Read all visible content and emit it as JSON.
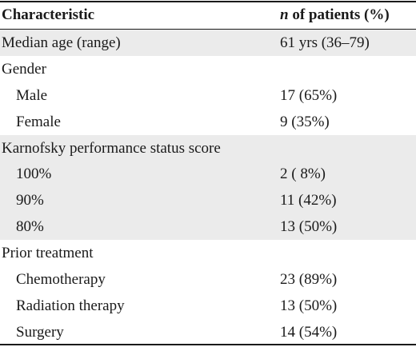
{
  "header": {
    "col1": "Characteristic",
    "col2_italic": "n",
    "col2_rest": " of patients (%)"
  },
  "rows": [
    {
      "label": "Median age (range)",
      "value": "61 yrs (36–79)",
      "indent": false,
      "shaded": true
    },
    {
      "label": "Gender",
      "value": "",
      "indent": false,
      "shaded": false
    },
    {
      "label": "Male",
      "value": "17 (65%)",
      "indent": true,
      "shaded": false
    },
    {
      "label": "Female",
      "value": "9 (35%)",
      "indent": true,
      "shaded": false
    },
    {
      "label": "Karnofsky performance status score",
      "value": "",
      "indent": false,
      "shaded": true
    },
    {
      "label": "100%",
      "value": "2 ( 8%)",
      "indent": true,
      "shaded": true
    },
    {
      "label": "90%",
      "value": "11 (42%)",
      "indent": true,
      "shaded": true
    },
    {
      "label": "80%",
      "value": "13 (50%)",
      "indent": true,
      "shaded": true
    },
    {
      "label": "Prior treatment",
      "value": "",
      "indent": false,
      "shaded": false
    },
    {
      "label": "Chemotherapy",
      "value": "23 (89%)",
      "indent": true,
      "shaded": false
    },
    {
      "label": "Radiation therapy",
      "value": "13 (50%)",
      "indent": true,
      "shaded": false
    },
    {
      "label": "Surgery",
      "value": "14 (54%)",
      "indent": true,
      "shaded": false
    }
  ]
}
